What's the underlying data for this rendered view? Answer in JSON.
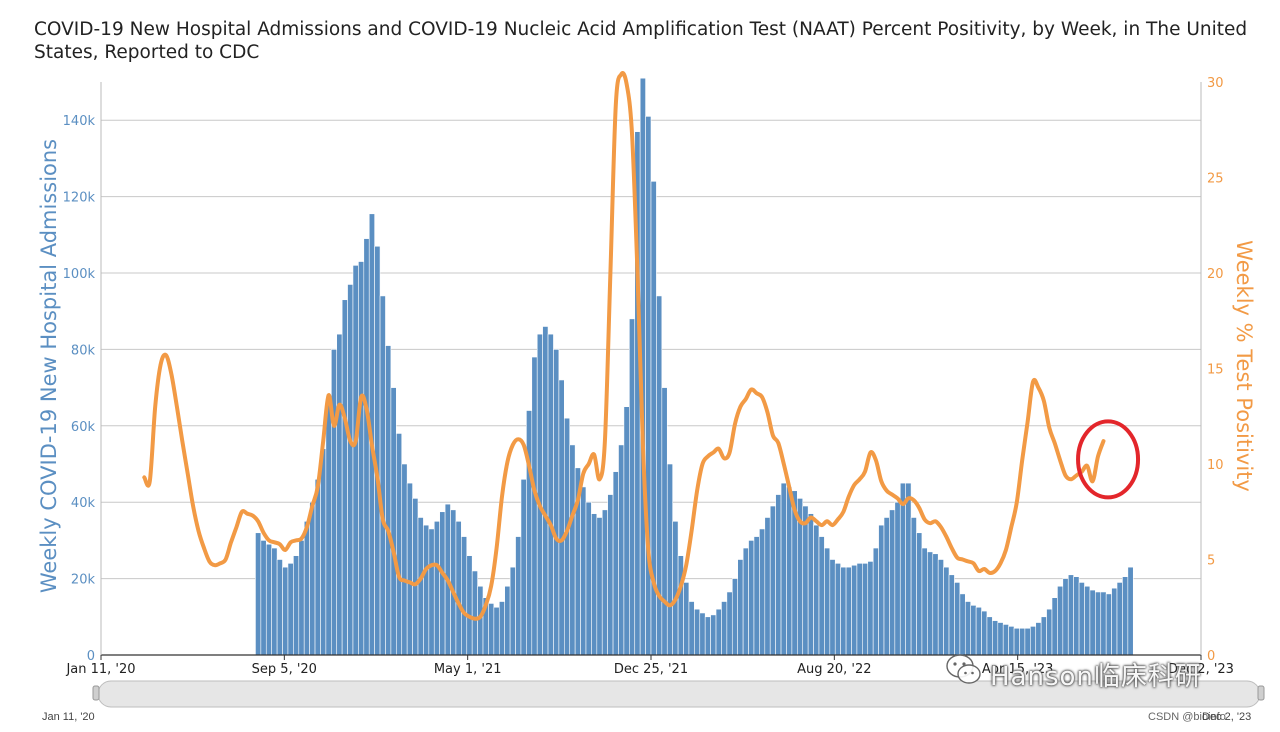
{
  "title": "COVID-19 New Hospital Admissions and COVID-19 Nucleic Acid Amplification Test (NAAT) Percent Positivity, by Week, in The United States, Reported to CDC",
  "watermark": "Hanson临床科研",
  "credit": "CSDN @bioinfo",
  "scroller": {
    "start_label": "Jan 11, '20",
    "end_label": "Dec 2, '23"
  },
  "colors": {
    "bars": "#5b8fc2",
    "bar_edge": "#ffffff",
    "line": "#f29a45",
    "highlight_circle": "#e3262b",
    "grid": "#c8c8c8"
  },
  "chart_data": {
    "type": "bar+line",
    "x_start": "2020-01-11",
    "x_end": "2023-12-02",
    "x_ticks": [
      "Jan 11, '20",
      "Sep 5, '20",
      "May 1, '21",
      "Dec 25, '21",
      "Aug 20, '22",
      "Apr 15, '23",
      "Dec 2, '23"
    ],
    "y_left": {
      "label": "Weekly COVID-19 New Hospital Admissions",
      "range": [
        0,
        150000
      ],
      "ticks": [
        0,
        20000,
        40000,
        60000,
        80000,
        100000,
        120000,
        140000
      ],
      "tick_labels": [
        "0",
        "20k",
        "40k",
        "60k",
        "80k",
        "100k",
        "120k",
        "140k"
      ]
    },
    "y_right": {
      "label": "Weekly % Test Positivity",
      "range": [
        0,
        30
      ],
      "ticks": [
        0,
        5,
        10,
        15,
        20,
        25,
        30
      ],
      "tick_labels": [
        "0",
        "5",
        "10",
        "15",
        "20",
        "25",
        "30"
      ]
    },
    "grid": true,
    "admissions": {
      "name": "Weekly COVID-19 New Hospital Admissions",
      "start_week": "2020-08-01",
      "values": [
        32000,
        30000,
        29000,
        28000,
        25000,
        23000,
        24000,
        26000,
        30000,
        35000,
        40000,
        46000,
        54000,
        66000,
        80000,
        84000,
        93000,
        97000,
        102000,
        103000,
        109000,
        115500,
        107000,
        94000,
        81000,
        70000,
        58000,
        50000,
        45000,
        41000,
        36000,
        34000,
        33000,
        35000,
        37500,
        39500,
        38000,
        35000,
        31000,
        26000,
        22000,
        18000,
        15000,
        13500,
        12500,
        14000,
        18000,
        23000,
        31000,
        46000,
        64000,
        78000,
        84000,
        86000,
        84000,
        80000,
        72000,
        62000,
        55000,
        49000,
        44000,
        40000,
        37000,
        36000,
        38000,
        42000,
        48000,
        55000,
        65000,
        88000,
        137000,
        151000,
        141000,
        124000,
        94000,
        70000,
        50000,
        35000,
        26000,
        19000,
        14000,
        12000,
        11000,
        10000,
        10500,
        12000,
        14000,
        16500,
        20000,
        25000,
        28000,
        30000,
        31000,
        33000,
        36000,
        39000,
        42000,
        45000,
        44000,
        43000,
        41000,
        39000,
        37000,
        34000,
        31000,
        28000,
        25000,
        24000,
        23000,
        23000,
        23500,
        24000,
        24000,
        24500,
        28000,
        34000,
        36000,
        38000,
        40000,
        45000,
        45000,
        36000,
        32000,
        28000,
        27000,
        26500,
        25000,
        23000,
        21000,
        19000,
        16000,
        14000,
        13000,
        12500,
        11500,
        10000,
        9000,
        8500,
        8000,
        7500,
        7000,
        7000,
        7000,
        7500,
        8500,
        10000,
        12000,
        15000,
        18000,
        20000,
        21000,
        20500,
        19000,
        18000,
        17000,
        16500,
        16500,
        16000,
        17500,
        19000,
        20500,
        23000
      ]
    },
    "positivity": {
      "name": "Weekly % Test Positivity",
      "start_week": "2020-03-07",
      "values": [
        9.3,
        9.1,
        13.0,
        15.2,
        15.7,
        14.7,
        13.0,
        11.2,
        9.5,
        7.8,
        6.5,
        5.6,
        4.9,
        4.7,
        4.8,
        5.0,
        5.9,
        6.7,
        7.5,
        7.4,
        7.3,
        7.0,
        6.4,
        6.0,
        5.9,
        5.8,
        5.5,
        5.9,
        6.0,
        6.1,
        6.7,
        7.8,
        8.8,
        11.2,
        13.6,
        12.0,
        13.1,
        12.4,
        11.2,
        11.2,
        13.5,
        12.9,
        11.0,
        9.3,
        7.1,
        6.5,
        5.4,
        4.1,
        3.9,
        3.8,
        3.7,
        4.0,
        4.5,
        4.7,
        4.7,
        4.3,
        3.9,
        3.3,
        2.7,
        2.2,
        2.0,
        1.9,
        2.0,
        2.6,
        3.6,
        5.6,
        8.3,
        10.1,
        11.0,
        11.3,
        11.0,
        9.9,
        8.6,
        7.8,
        7.3,
        6.8,
        6.1,
        6.0,
        6.5,
        7.3,
        8.1,
        9.5,
        10.0,
        10.5,
        9.2,
        11.2,
        20.0,
        28.8,
        30.4,
        29.9,
        27.3,
        20.0,
        11.0,
        5.5,
        3.8,
        3.1,
        2.8,
        2.6,
        2.9,
        3.6,
        4.7,
        6.5,
        8.6,
        10.0,
        10.4,
        10.6,
        10.8,
        10.3,
        10.6,
        12.1,
        13.0,
        13.4,
        13.9,
        13.7,
        13.5,
        12.7,
        11.5,
        11.1,
        10.0,
        8.8,
        7.6,
        7.0,
        6.9,
        7.2,
        7.0,
        6.8,
        7.0,
        6.8,
        7.1,
        7.5,
        8.3,
        8.9,
        9.2,
        9.6,
        10.6,
        10.2,
        9.1,
        8.6,
        8.4,
        8.2,
        7.9,
        8.2,
        8.1,
        7.7,
        7.1,
        6.9,
        7.0,
        6.7,
        6.2,
        5.6,
        5.1,
        5.0,
        4.9,
        4.8,
        4.4,
        4.5,
        4.3,
        4.4,
        4.8,
        5.5,
        6.7,
        8.0,
        10.2,
        12.2,
        14.3,
        14.0,
        13.3,
        11.9,
        11.1,
        10.2,
        9.4,
        9.2,
        9.4,
        9.6,
        9.9,
        9.1,
        10.4,
        11.2
      ]
    },
    "annotation": "red circle around most recent positivity values"
  }
}
